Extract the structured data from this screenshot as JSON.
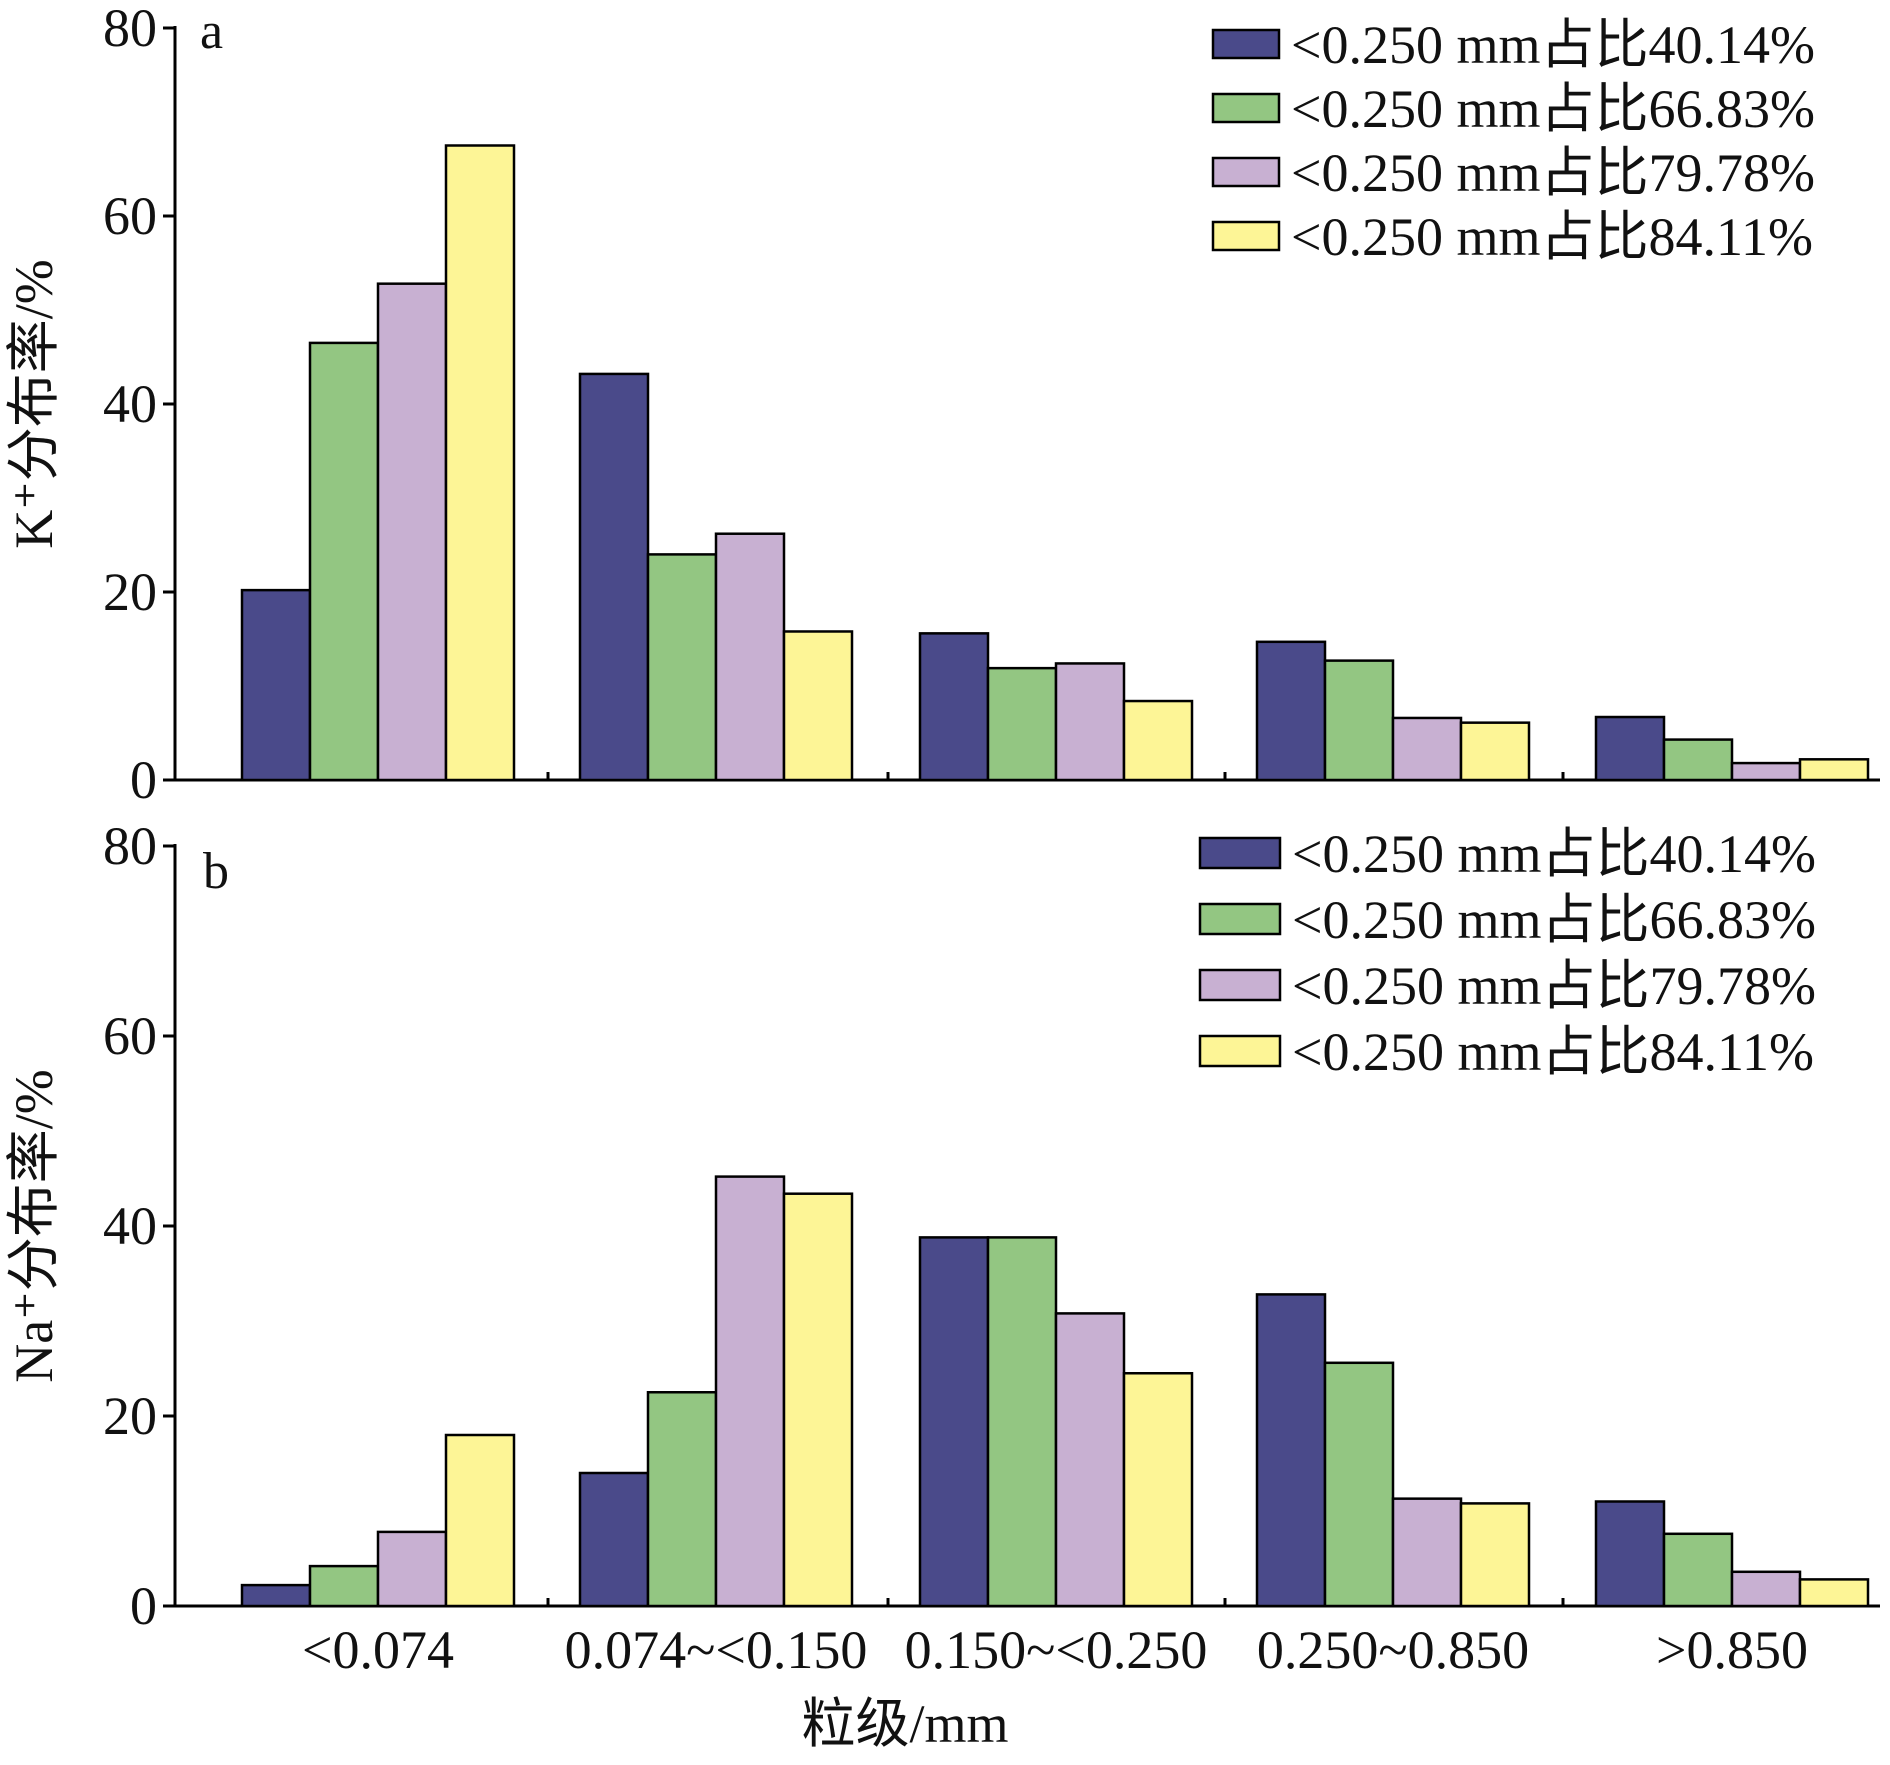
{
  "chart_data": [
    {
      "type": "bar",
      "panel_label": "a",
      "ylabel": "K⁺分布率/%",
      "ylim": [
        0,
        80
      ],
      "yticks": [
        "0",
        "20",
        "40",
        "60",
        "80"
      ],
      "categories": [
        "<0.074",
        "0.074~<0.150",
        "0.150~<0.250",
        "0.250~0.850",
        ">0.850"
      ],
      "show_category_labels": false,
      "legend_position": "top-right",
      "series": [
        {
          "name": "<0.250 mm占比40.14%",
          "color": "#4a4a8a",
          "values": [
            20.2,
            43.2,
            15.6,
            14.7,
            6.7
          ]
        },
        {
          "name": "<0.250 mm占比66.83%",
          "color": "#93c682",
          "values": [
            46.5,
            24.0,
            11.9,
            12.7,
            4.3
          ]
        },
        {
          "name": "<0.250 mm占比79.78%",
          "color": "#c8b0d2",
          "values": [
            52.8,
            26.2,
            12.4,
            6.6,
            1.8
          ]
        },
        {
          "name": "<0.250 mm占比84.11%",
          "color": "#fdf596",
          "values": [
            67.5,
            15.8,
            8.4,
            6.1,
            2.2
          ]
        }
      ]
    },
    {
      "type": "bar",
      "panel_label": "b",
      "ylabel": "Na⁺分布率/%",
      "xlabel": "粒级/mm",
      "ylim": [
        0,
        80
      ],
      "yticks": [
        "0",
        "20",
        "40",
        "60",
        "80"
      ],
      "categories": [
        "<0.074",
        "0.074~<0.150",
        "0.150~<0.250",
        "0.250~0.850",
        ">0.850"
      ],
      "show_category_labels": true,
      "legend_position": "top-right",
      "series": [
        {
          "name": "<0.250 mm占比40.14%",
          "color": "#4a4a8a",
          "values": [
            2.2,
            14.0,
            38.8,
            32.8,
            11.0
          ]
        },
        {
          "name": "<0.250 mm占比66.83%",
          "color": "#93c682",
          "values": [
            4.2,
            22.5,
            38.8,
            25.6,
            7.6
          ]
        },
        {
          "name": "<0.250 mm占比79.78%",
          "color": "#c8b0d2",
          "values": [
            7.8,
            45.2,
            30.8,
            11.3,
            3.6
          ]
        },
        {
          "name": "<0.250 mm占比84.11%",
          "color": "#fdf596",
          "values": [
            18.0,
            43.4,
            24.5,
            10.8,
            2.8
          ]
        }
      ]
    }
  ]
}
